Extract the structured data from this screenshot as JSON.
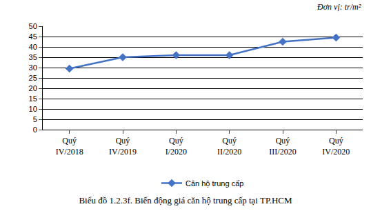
{
  "chart_data": {
    "type": "line",
    "title": "Biểu đồ 1.2.3f. Biến động giá căn hộ trung cấp tại TP.HCM",
    "annotations": [
      "Đơn vị: tr/m²"
    ],
    "categories": [
      "Quý IV/2018",
      "Quý IV/2019",
      "Quý I/2020",
      "Quý II/2020",
      "Quý III/2020",
      "Quý IV/2020"
    ],
    "series": [
      {
        "name": "Căn hộ trung cấp",
        "color": "#4472c4",
        "marker": "diamond",
        "values": [
          29.5,
          35,
          36,
          36,
          42.5,
          44.5
        ]
      }
    ],
    "ylim": [
      0,
      50
    ],
    "yticks": [
      0,
      5,
      10,
      15,
      20,
      25,
      30,
      35,
      40,
      45,
      50
    ],
    "grid": true,
    "legend": "bottom"
  }
}
